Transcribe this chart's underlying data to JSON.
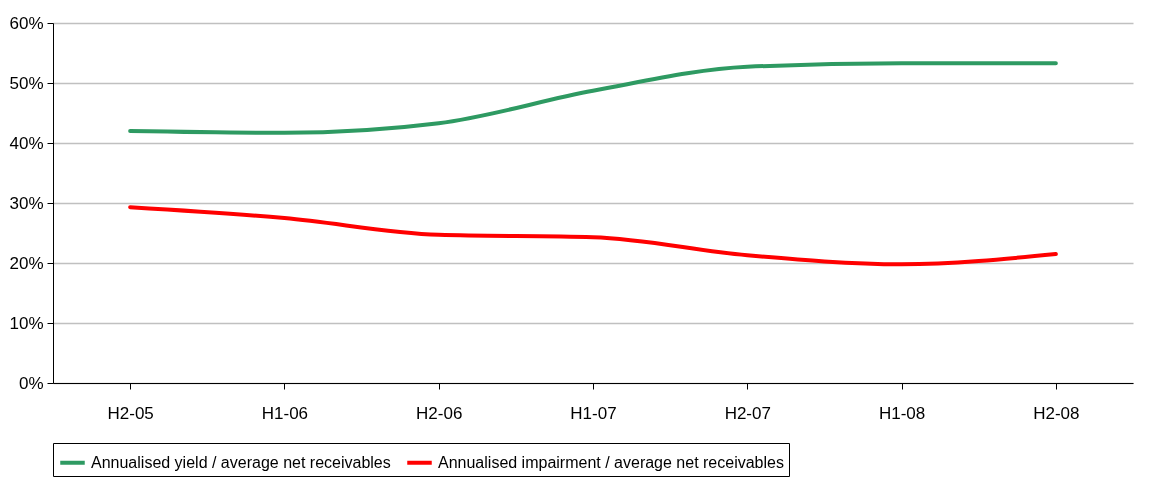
{
  "chart_data": {
    "type": "line",
    "categories": [
      "H2-05",
      "H1-06",
      "H2-06",
      "H1-07",
      "H2-07",
      "H1-08",
      "H2-08"
    ],
    "series": [
      {
        "name": "Annualised yield / average net receivables",
        "color": "#2e9a62",
        "values": [
          42.0,
          41.7,
          43.3,
          48.7,
          52.7,
          53.3,
          53.3
        ]
      },
      {
        "name": "Annualised impairment / average net receivables",
        "color": "#ff0000",
        "values": [
          29.3,
          27.5,
          24.7,
          24.3,
          21.3,
          19.8,
          21.5
        ]
      }
    ],
    "ylim": [
      0,
      60
    ],
    "yticks": [
      {
        "value": 0,
        "label": "0%"
      },
      {
        "value": 10,
        "label": "10%"
      },
      {
        "value": 20,
        "label": "20%"
      },
      {
        "value": 30,
        "label": "30%"
      },
      {
        "value": 40,
        "label": "40%"
      },
      {
        "value": 50,
        "label": "50%"
      },
      {
        "value": 60,
        "label": "60%"
      }
    ],
    "grid": "y",
    "legend": "bottom",
    "marker": "none",
    "line_style": "solid"
  }
}
